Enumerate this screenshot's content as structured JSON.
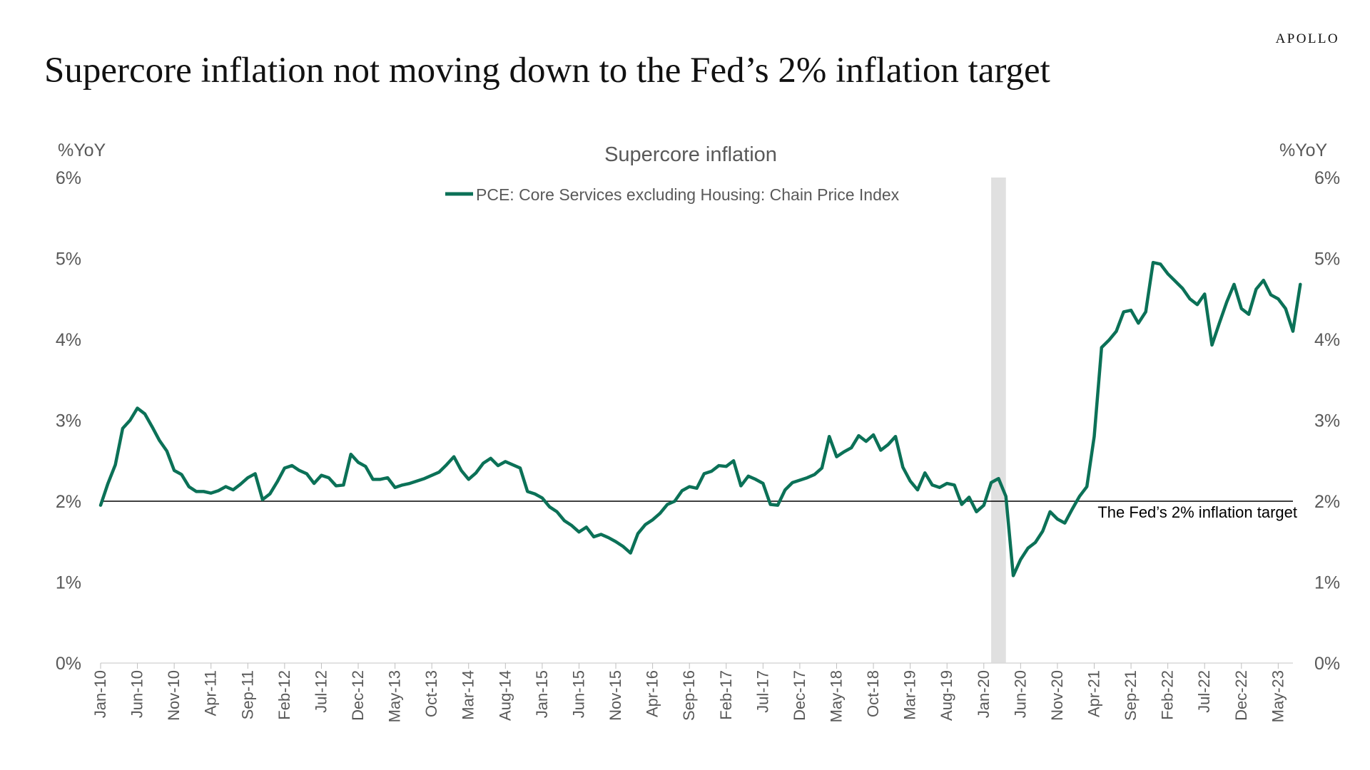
{
  "brand": "APOLLO",
  "page_title": "Supercore inflation not moving down to the Fed’s 2% inflation target",
  "colors": {
    "series": "#0b7157",
    "recession": "#e0e0e0",
    "target_line": "#000000",
    "axis_text": "#595959"
  },
  "chart_data": {
    "type": "line",
    "title": "Supercore inflation",
    "ylabel_left": "%YoY",
    "ylabel_right": "%YoY",
    "ylim": [
      0,
      6
    ],
    "yticks": [
      "0%",
      "1%",
      "2%",
      "3%",
      "4%",
      "5%",
      "6%"
    ],
    "legend_position": "top-center",
    "grid": false,
    "x_start": "Jan-10",
    "x_end": "Jul-23",
    "xtick_labels": [
      "Jan-10",
      "Jun-10",
      "Nov-10",
      "Apr-11",
      "Sep-11",
      "Feb-12",
      "Jul-12",
      "Dec-12",
      "May-13",
      "Oct-13",
      "Mar-14",
      "Aug-14",
      "Jan-15",
      "Jun-15",
      "Nov-15",
      "Apr-16",
      "Sep-16",
      "Feb-17",
      "Jul-17",
      "Dec-17",
      "May-18",
      "Oct-18",
      "Mar-19",
      "Aug-19",
      "Jan-20",
      "Jun-20",
      "Nov-20",
      "Apr-21",
      "Sep-21",
      "Feb-22",
      "Jul-22",
      "Dec-22",
      "May-23"
    ],
    "recession": {
      "start": "Feb-20",
      "end": "Apr-20"
    },
    "reference_line": {
      "value": 2.0,
      "label": "The Fed’s 2% inflation target"
    },
    "series": [
      {
        "name": "PCE: Core Services excluding Housing: Chain Price Index",
        "values": [
          1.95,
          2.22,
          2.45,
          2.9,
          3.0,
          3.15,
          3.08,
          2.92,
          2.75,
          2.62,
          2.38,
          2.33,
          2.18,
          2.12,
          2.12,
          2.1,
          2.13,
          2.18,
          2.14,
          2.21,
          2.29,
          2.34,
          2.02,
          2.09,
          2.24,
          2.41,
          2.44,
          2.38,
          2.34,
          2.22,
          2.32,
          2.29,
          2.19,
          2.2,
          2.58,
          2.48,
          2.43,
          2.27,
          2.27,
          2.29,
          2.17,
          2.2,
          2.22,
          2.25,
          2.28,
          2.32,
          2.36,
          2.45,
          2.55,
          2.38,
          2.27,
          2.35,
          2.47,
          2.53,
          2.44,
          2.49,
          2.45,
          2.41,
          2.12,
          2.09,
          2.04,
          1.93,
          1.87,
          1.76,
          1.7,
          1.62,
          1.68,
          1.56,
          1.59,
          1.55,
          1.5,
          1.44,
          1.36,
          1.6,
          1.71,
          1.77,
          1.85,
          1.96,
          2.0,
          2.13,
          2.18,
          2.16,
          2.34,
          2.37,
          2.44,
          2.43,
          2.5,
          2.19,
          2.31,
          2.27,
          2.22,
          1.96,
          1.95,
          2.14,
          2.23,
          2.26,
          2.29,
          2.33,
          2.41,
          2.8,
          2.55,
          2.61,
          2.66,
          2.81,
          2.74,
          2.82,
          2.63,
          2.7,
          2.8,
          2.42,
          2.25,
          2.14,
          2.35,
          2.2,
          2.17,
          2.22,
          2.2,
          1.96,
          2.05,
          1.87,
          1.95,
          2.23,
          2.28,
          2.06,
          1.08,
          1.28,
          1.42,
          1.49,
          1.63,
          1.87,
          1.78,
          1.73,
          1.9,
          2.06,
          2.18,
          2.8,
          3.9,
          3.99,
          4.1,
          4.34,
          4.36,
          4.2,
          4.34,
          4.95,
          4.93,
          4.81,
          4.72,
          4.63,
          4.5,
          4.43,
          4.56,
          3.93,
          4.2,
          4.46,
          4.68,
          4.38,
          4.31,
          4.62,
          4.73,
          4.55,
          4.5,
          4.38,
          4.1,
          4.68
        ]
      }
    ]
  }
}
